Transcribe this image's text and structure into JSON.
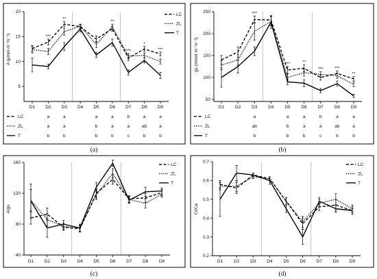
{
  "chart_data": [
    {
      "panel_label": "(a)",
      "type": "line",
      "categories": [
        "D1",
        "D2",
        "D3",
        "D4",
        "D5",
        "D6",
        "D7",
        "D8",
        "D9"
      ],
      "ylabel": "A (μmol·m⁻²s⁻¹)",
      "ylim": [
        5,
        20
      ],
      "yticks": [
        5,
        10,
        15,
        20
      ],
      "separators_after": [
        "D3",
        "D6"
      ],
      "legend": "top-right",
      "series": [
        {
          "name": "LC",
          "line_style": "dashed",
          "values": [
            12.6,
            13.9,
            17.5,
            17.0,
            14.5,
            16.6,
            10.7,
            12.5,
            11.5
          ],
          "error": [
            0.6,
            0.6,
            0.5,
            0.4,
            0.6,
            0.5,
            0.5,
            0.5,
            0.4
          ]
        },
        {
          "name": "ZL",
          "line_style": "dotted",
          "values": [
            12.4,
            12.0,
            16.0,
            17.1,
            13.4,
            17.0,
            11.1,
            11.2,
            10.0
          ],
          "error": [
            0.7,
            0.6,
            0.7,
            0.4,
            0.6,
            0.5,
            0.5,
            0.5,
            0.5
          ]
        },
        {
          "name": "T",
          "line_style": "solid",
          "values": [
            9.3,
            9.0,
            13.0,
            16.5,
            11.3,
            13.8,
            7.8,
            10.2,
            7.2
          ],
          "error": [
            1.4,
            0.5,
            0.8,
            0.6,
            0.5,
            0.7,
            0.5,
            0.5,
            0.6
          ]
        }
      ],
      "annotations": [
        {
          "x": "D2",
          "text": "***"
        },
        {
          "x": "D3",
          "text": "**"
        },
        {
          "x": "D6",
          "text": "**"
        },
        {
          "x": "D7",
          "text": "***"
        },
        {
          "x": "D8",
          "text": "*"
        },
        {
          "x": "D9",
          "text": "***"
        }
      ],
      "letters": {
        "LC": [
          "",
          "a",
          "a",
          "",
          "a",
          "a",
          "b",
          "a",
          "a"
        ],
        "ZL": [
          "",
          "a",
          "a",
          "",
          "b",
          "a",
          "a",
          "ab",
          "a"
        ],
        "T": [
          "",
          "b",
          "b",
          "",
          "b",
          "b",
          "c",
          "b",
          "b"
        ]
      }
    },
    {
      "panel_label": "(b)",
      "type": "line",
      "categories": [
        "D1",
        "D2",
        "D3",
        "D4",
        "D5",
        "D6",
        "D7",
        "D8",
        "D9"
      ],
      "ylabel": "gs (mmol·m⁻²s⁻¹)",
      "ylim": [
        50,
        250
      ],
      "yticks": [
        50,
        100,
        150,
        200,
        250
      ],
      "separators_after": [
        "D3",
        "D6"
      ],
      "legend": "table",
      "series": [
        {
          "name": "LC",
          "line_style": "dashed",
          "values": [
            140,
            158,
            232,
            231,
            117,
            121,
            100,
            109,
            97
          ],
          "error": [
            10,
            12,
            8,
            10,
            8,
            8,
            6,
            6,
            5
          ]
        },
        {
          "name": "ZL",
          "line_style": "dotted",
          "values": [
            128,
            140,
            205,
            228,
            100,
            111,
            107,
            104,
            84
          ],
          "error": [
            10,
            12,
            20,
            10,
            8,
            8,
            6,
            6,
            5
          ]
        },
        {
          "name": "T",
          "line_style": "solid",
          "values": [
            100,
            125,
            160,
            226,
            90,
            87,
            70,
            86,
            58
          ],
          "error": [
            22,
            15,
            10,
            14,
            6,
            8,
            5,
            6,
            4
          ]
        }
      ],
      "annotations": [
        {
          "x": "D3",
          "text": "***"
        },
        {
          "x": "D5",
          "text": "***"
        },
        {
          "x": "D6",
          "text": "**"
        },
        {
          "x": "D7",
          "text": "***"
        },
        {
          "x": "D8",
          "text": "***"
        },
        {
          "x": "D9",
          "text": "**"
        }
      ],
      "letters": {
        "LC": [
          "",
          "",
          "a",
          "",
          "a",
          "a",
          "b",
          "a",
          "a"
        ],
        "ZL": [
          "",
          "",
          "ab",
          "",
          "b",
          "a",
          "a",
          "ab",
          "a"
        ],
        "T": [
          "",
          "",
          "b",
          "",
          "b",
          "b",
          "c",
          "b",
          "b"
        ]
      }
    },
    {
      "panel_label": "(c)",
      "type": "line",
      "categories": [
        "D1",
        "D2",
        "D3",
        "D4",
        "D5",
        "D6",
        "D7",
        "D8",
        "D9"
      ],
      "ylabel": "A/gs",
      "ylim": [
        40,
        160
      ],
      "yticks": [
        40,
        80,
        120,
        160
      ],
      "separators_after": [
        "D3",
        "D6"
      ],
      "legend": "top-right",
      "series": [
        {
          "name": "LC",
          "line_style": "dashed",
          "values": [
            88,
            93,
            76,
            74,
            120,
            138,
            113,
            114,
            121
          ],
          "error": [
            8,
            8,
            4,
            4,
            6,
            6,
            4,
            6,
            4
          ]
        },
        {
          "name": "ZL",
          "line_style": "dotted",
          "values": [
            111,
            86,
            77,
            75,
            118,
            146,
            112,
            107,
            119
          ],
          "error": [
            14,
            8,
            4,
            4,
            6,
            6,
            4,
            6,
            4
          ]
        },
        {
          "name": "T",
          "line_style": "solid",
          "values": [
            110,
            75,
            80,
            75,
            128,
            159,
            111,
            122,
            123
          ],
          "error": [
            22,
            12,
            5,
            5,
            6,
            4,
            4,
            6,
            4
          ]
        }
      ]
    },
    {
      "panel_label": "(d)",
      "type": "line",
      "categories": [
        "D1",
        "D2",
        "D3",
        "D4",
        "D5",
        "D6",
        "D7",
        "D8",
        "D9"
      ],
      "ylabel": "Ci/Ca",
      "ylim": [
        0.2,
        0.7
      ],
      "yticks": [
        0.2,
        0.3,
        0.4,
        0.5,
        0.6,
        0.7
      ],
      "separators_after": [
        "D3",
        "D6"
      ],
      "legend": "top-right",
      "series": [
        {
          "name": "LC",
          "line_style": "dashed",
          "values": [
            0.58,
            0.56,
            0.63,
            0.61,
            0.49,
            0.37,
            0.46,
            0.47,
            0.44
          ],
          "error": [
            0.02,
            0.03,
            0.01,
            0.01,
            0.02,
            0.03,
            0.02,
            0.03,
            0.02
          ]
        },
        {
          "name": "ZL",
          "line_style": "dotted",
          "values": [
            0.57,
            0.57,
            0.62,
            0.61,
            0.49,
            0.38,
            0.48,
            0.5,
            0.45
          ],
          "error": [
            0.02,
            0.03,
            0.01,
            0.01,
            0.02,
            0.03,
            0.02,
            0.03,
            0.02
          ]
        },
        {
          "name": "T",
          "line_style": "solid",
          "values": [
            0.5,
            0.64,
            0.63,
            0.6,
            0.45,
            0.3,
            0.49,
            0.45,
            0.44
          ],
          "error": [
            0.09,
            0.04,
            0.01,
            0.02,
            0.02,
            0.04,
            0.02,
            0.02,
            0.01
          ]
        }
      ]
    }
  ]
}
